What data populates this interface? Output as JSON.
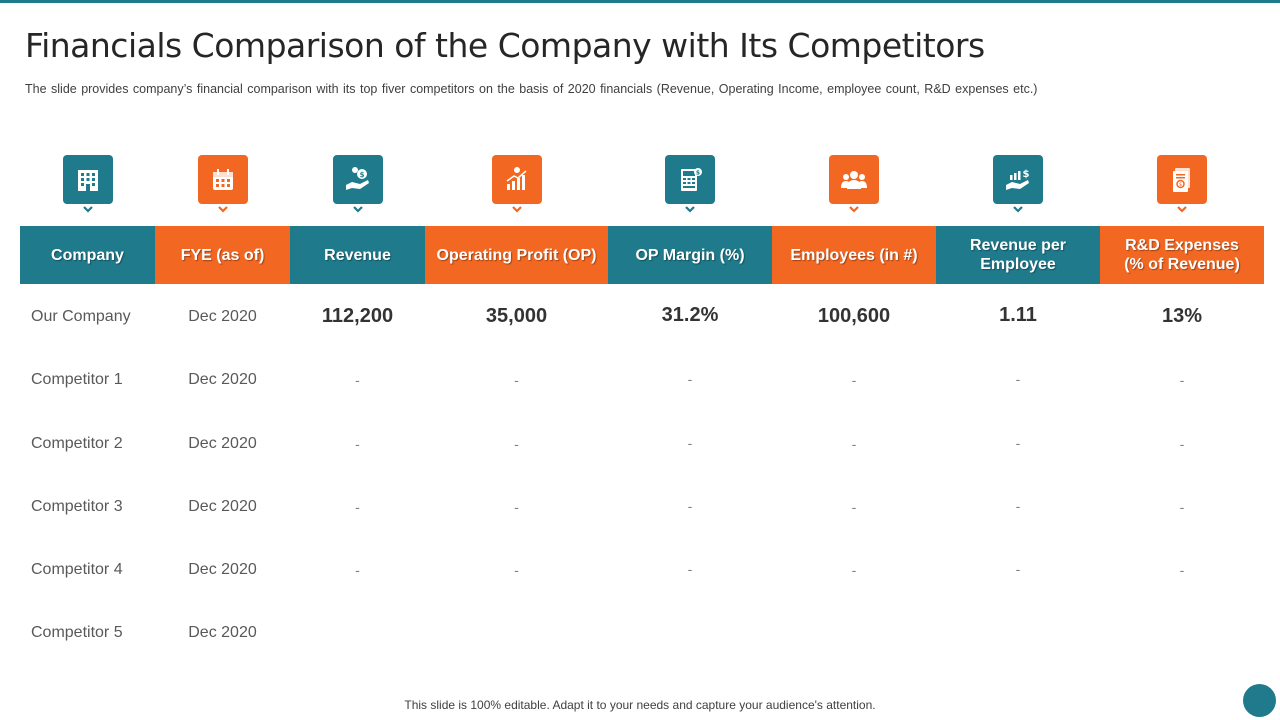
{
  "slide": {
    "title": "Financials Comparison of the Company with Its Competitors",
    "subtitle": "The slide provides  company’s financial  comparison with its top fiver  competitors on the basis of 2020 financials (Revenue,  Operating Income, employee count, R&D expenses etc.)",
    "footer": "This slide is 100% editable. Adapt it to your needs and capture your audience's attention."
  },
  "colors": {
    "teal": "#1f7a8c",
    "orange": "#f26722"
  },
  "columns": [
    {
      "label": "Company",
      "color": "teal",
      "icon": "building-icon"
    },
    {
      "label": "FYE (as of)",
      "color": "orange",
      "icon": "calendar-icon"
    },
    {
      "label": "Revenue",
      "color": "teal",
      "icon": "hand-money-icon"
    },
    {
      "label": "Operating Profit (OP)",
      "color": "orange",
      "icon": "growth-chart-icon"
    },
    {
      "label": "OP Margin (%)",
      "color": "teal",
      "icon": "calculator-icon"
    },
    {
      "label": "Employees (in #)",
      "color": "orange",
      "icon": "team-icon"
    },
    {
      "label": "Revenue per Employee",
      "color": "teal",
      "icon": "hand-growth-icon"
    },
    {
      "label": "R&D Expenses (% of Revenue)",
      "color": "orange",
      "icon": "document-icon"
    }
  ],
  "rows": [
    {
      "company": "Our Company",
      "fye": "Dec 2020",
      "values": [
        "112,200",
        "35,000",
        "31.2%",
        "100,600",
        "1.11",
        "13%"
      ]
    },
    {
      "company": "Competitor 1",
      "fye": "Dec 2020",
      "values": [
        "-",
        "-",
        "-",
        "-",
        "-",
        "-"
      ]
    },
    {
      "company": "Competitor 2",
      "fye": "Dec 2020",
      "values": [
        "-",
        "-",
        "-",
        "-",
        "-",
        "-"
      ]
    },
    {
      "company": "Competitor 3",
      "fye": "Dec 2020",
      "values": [
        "-",
        "-",
        "-",
        "-",
        "-",
        "-"
      ]
    },
    {
      "company": "Competitor 4",
      "fye": "Dec 2020",
      "values": [
        "-",
        "-",
        "-",
        "-",
        "-",
        "-"
      ]
    },
    {
      "company": "Competitor 5",
      "fye": "Dec 2020",
      "values": [
        "",
        "",
        "",
        "",
        "",
        ""
      ]
    }
  ]
}
